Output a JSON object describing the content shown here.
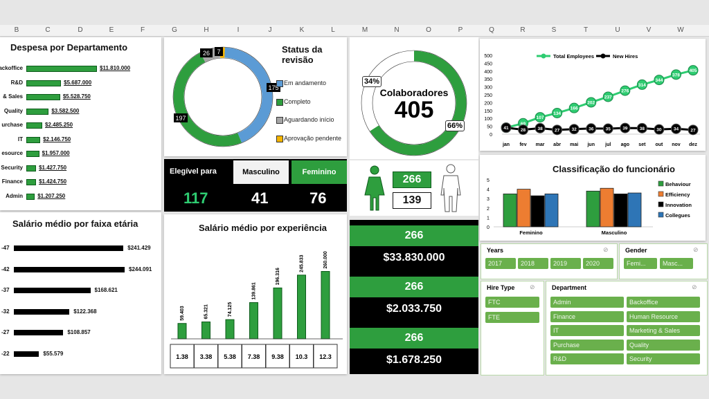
{
  "columns": [
    "B",
    "C",
    "D",
    "E",
    "F",
    "G",
    "H",
    "I",
    "J",
    "K",
    "L",
    "M",
    "N",
    "O",
    "P",
    "Q",
    "R",
    "S",
    "T",
    "U",
    "V",
    "W"
  ],
  "dept": {
    "title": "Despesa por Departamento",
    "rows": [
      {
        "label": "ackoffice",
        "value": "$11.810.000",
        "amount": 11810000
      },
      {
        "label": "R&D",
        "value": "$5.687.000",
        "amount": 5687000
      },
      {
        "label": "& Sales",
        "value": "$5.528.750",
        "amount": 5528750
      },
      {
        "label": "Quality",
        "value": "$3.582.500",
        "amount": 3582500
      },
      {
        "label": "urchase",
        "value": "$2.485.250",
        "amount": 2485250
      },
      {
        "label": "IT",
        "value": "$2.146.750",
        "amount": 2146750
      },
      {
        "label": "esource",
        "value": "$1.957.000",
        "amount": 1957000
      },
      {
        "label": "Security",
        "value": "$1.427.750",
        "amount": 1427750
      },
      {
        "label": "Finance",
        "value": "$1.424.750",
        "amount": 1424750
      },
      {
        "label": "Admin",
        "value": "$1.207.250",
        "amount": 1207250
      }
    ]
  },
  "status": {
    "title": "Status da revisão",
    "segments": [
      {
        "label": "Em andamento",
        "value": 175,
        "color": "#5b9bd5"
      },
      {
        "label": "Completo",
        "value": 197,
        "color": "#2e9e3e"
      },
      {
        "label": "Aguardando início",
        "value": 26,
        "color": "#a6a6a6"
      },
      {
        "label": "Aprovação pendente",
        "value": 7,
        "color": "#f4b400"
      }
    ],
    "labels": {
      "a": "175",
      "b": "197",
      "c": "26",
      "d": "7"
    }
  },
  "colab": {
    "title": "Colaboradores",
    "total": "405",
    "pct_left": "34%",
    "pct_right": "66%",
    "share": 0.66
  },
  "elig": {
    "label": "Elegível para",
    "total": "117",
    "male_label": "Masculino",
    "male": "41",
    "female_label": "Feminino",
    "female": "76"
  },
  "gender_counts": {
    "female": "266",
    "male": "139"
  },
  "totals": [
    {
      "count": "266",
      "amount": "$33.830.000"
    },
    {
      "count": "266",
      "amount": "$2.033.750"
    },
    {
      "count": "266",
      "amount": "$1.678.250"
    }
  ],
  "age": {
    "title": "Salário médio por faixa etária",
    "rows": [
      {
        "label": "-47",
        "value": "$241.429",
        "amount": 241429
      },
      {
        "label": "-42",
        "value": "$244.091",
        "amount": 244091
      },
      {
        "label": "-37",
        "value": "$168.621",
        "amount": 168621
      },
      {
        "label": "-32",
        "value": "$122.368",
        "amount": 122368
      },
      {
        "label": "-27",
        "value": "$108.857",
        "amount": 108857
      },
      {
        "label": "-22",
        "value": "$55.579",
        "amount": 55579
      }
    ]
  },
  "chart_data": [
    {
      "type": "bar",
      "title": "Salário médio por experiência",
      "categories": [
        "1.38",
        "3.38",
        "5.38",
        "7.38",
        "9.38",
        "10.3",
        "12.3"
      ],
      "values": [
        59403,
        65321,
        74125,
        139861,
        196316,
        245833,
        260000
      ],
      "data_labels": [
        "59.403",
        "65.321",
        "74.125",
        "139.861",
        "196.316",
        "245.833",
        "260.000"
      ],
      "ylim": [
        0,
        280000
      ]
    },
    {
      "type": "line",
      "x": [
        "jan",
        "fev",
        "mar",
        "abr",
        "mai",
        "jun",
        "jul",
        "ago",
        "set",
        "out",
        "nov",
        "dez"
      ],
      "series": [
        {
          "name": "Total Employees",
          "values": [
            41,
            69,
            107,
            134,
            166,
            202,
            237,
            276,
            314,
            344,
            378,
            405
          ],
          "color": "#2ecc71"
        },
        {
          "name": "New Hires",
          "values": [
            41,
            28,
            38,
            27,
            32,
            36,
            35,
            39,
            38,
            30,
            34,
            27
          ],
          "color": "#000000"
        }
      ],
      "ylim": [
        0,
        500
      ],
      "yticks": [
        "500",
        "450",
        "400",
        "350",
        "300",
        "250",
        "200",
        "150",
        "100",
        "50",
        "0"
      ]
    },
    {
      "type": "bar",
      "title": "Classificação do funcionário",
      "categories": [
        "Feminino",
        "Masculino"
      ],
      "series": [
        {
          "name": "Behaviour",
          "values": [
            3.5,
            3.8
          ],
          "color": "#2e9e3e"
        },
        {
          "name": "Efficiency",
          "values": [
            4.0,
            4.1
          ],
          "color": "#ed7d31"
        },
        {
          "name": "Innovation",
          "values": [
            3.3,
            3.5
          ],
          "color": "#000000"
        },
        {
          "name": "Collegues",
          "values": [
            3.5,
            3.6
          ],
          "color": "#2e75b6"
        }
      ],
      "ylim": [
        0,
        5
      ],
      "yticks": [
        "5",
        "4",
        "3",
        "2",
        "1",
        "0"
      ]
    }
  ],
  "slicers": {
    "years": {
      "title": "Years",
      "items": [
        "2017",
        "2018",
        "2019",
        "2020"
      ]
    },
    "gender": {
      "title": "Gender",
      "items": [
        "Femi...",
        "Masc..."
      ]
    },
    "hire": {
      "title": "Hire Type",
      "items": [
        "FTC",
        "FTE"
      ]
    },
    "dept": {
      "title": "Department",
      "items": [
        "Admin",
        "Backoffice",
        "Finance",
        "Human Resource",
        "IT",
        "Marketing & Sales",
        "Purchase",
        "Quality",
        "R&D",
        "Security"
      ]
    }
  },
  "icons": {
    "filter": "filter-clear-icon",
    "female": "female-person-icon",
    "male": "male-person-icon"
  }
}
